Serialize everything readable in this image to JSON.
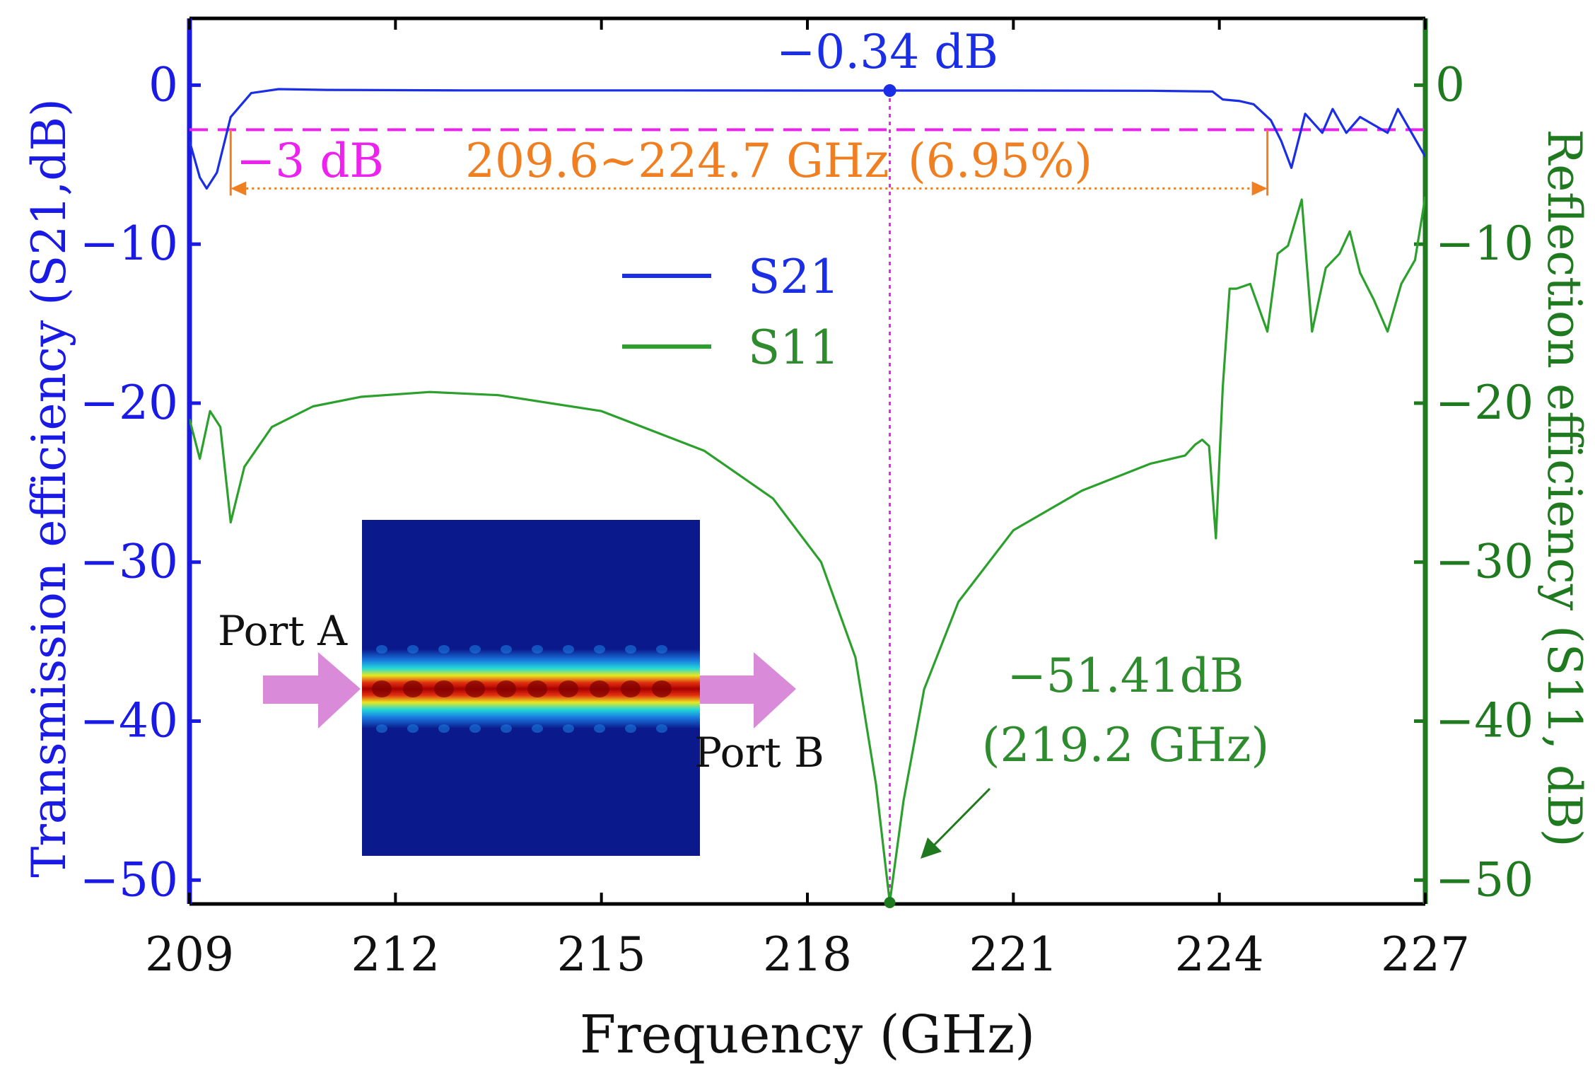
{
  "chart_data": {
    "type": "line",
    "xlabel": "Frequency (GHz)",
    "ylabel_left": "Transmission efficiency (S21,dB)",
    "ylabel_right": "Reflection efficiency  (S11, dB)",
    "xlim": [
      209,
      227
    ],
    "ylim_left": [
      -51.5,
      4.2
    ],
    "ylim_right": [
      -51.5,
      4.2
    ],
    "x_ticks": [
      209,
      212,
      215,
      218,
      221,
      224,
      227
    ],
    "x_tick_labels": [
      "209",
      "212",
      "215",
      "218",
      "221",
      "224",
      "227"
    ],
    "y_left_ticks": [
      0,
      -10,
      -20,
      -30,
      -40,
      -50
    ],
    "y_left_tick_labels": [
      "0",
      "−10",
      "−20",
      "−30",
      "−40",
      "−50"
    ],
    "y_right_ticks": [
      0,
      -10,
      -20,
      -30,
      -40,
      -50
    ],
    "y_right_tick_labels": [
      "0",
      "−10",
      "−20",
      "−30",
      "−40",
      "−50"
    ],
    "colors": {
      "s21": "#1a2ee6",
      "s11": "#2ca02c",
      "marker": "#ee22ee",
      "band": "#f07f22",
      "left_axis": "#1a1ae6",
      "right_axis": "#1f7a1f",
      "port_arrow": "#d98ad9"
    },
    "series": [
      {
        "name": "S21",
        "axis": "left",
        "color": "#1a2ee6",
        "x": [
          209.0,
          209.15,
          209.25,
          209.4,
          209.6,
          209.9,
          210.3,
          211,
          213,
          216,
          218,
          219.2,
          221,
          223,
          223.9,
          224.05,
          224.3,
          224.5,
          224.75,
          224.9,
          225.05,
          225.25,
          225.5,
          225.65,
          225.85,
          226.05,
          226.25,
          226.45,
          226.6,
          226.8,
          227.0
        ],
        "values": [
          -3.5,
          -5.8,
          -6.5,
          -5.5,
          -2.0,
          -0.5,
          -0.25,
          -0.3,
          -0.33,
          -0.33,
          -0.34,
          -0.34,
          -0.34,
          -0.35,
          -0.4,
          -0.9,
          -1.0,
          -1.2,
          -2.2,
          -3.5,
          -5.2,
          -1.8,
          -3.0,
          -1.5,
          -3.0,
          -2.0,
          -2.5,
          -3.0,
          -1.5,
          -3.0,
          -4.5
        ]
      },
      {
        "name": "S11",
        "axis": "right",
        "color": "#2ca02c",
        "x": [
          209.0,
          209.15,
          209.3,
          209.45,
          209.6,
          209.8,
          210.2,
          210.8,
          211.5,
          212.5,
          213.5,
          215,
          216.5,
          217.5,
          218.2,
          218.7,
          219.0,
          219.2,
          219.4,
          219.7,
          220.2,
          221,
          222,
          223,
          223.5,
          223.65,
          223.75,
          223.85,
          223.95,
          224.05,
          224.15,
          224.25,
          224.45,
          224.7,
          224.85,
          225.0,
          225.2,
          225.35,
          225.55,
          225.75,
          225.9,
          226.05,
          226.25,
          226.45,
          226.65,
          226.85,
          227.0
        ],
        "values": [
          -21.0,
          -23.5,
          -20.5,
          -21.5,
          -27.5,
          -24.0,
          -21.5,
          -20.2,
          -19.6,
          -19.3,
          -19.5,
          -20.5,
          -23.0,
          -26.0,
          -30.0,
          -36.0,
          -44.0,
          -51.4,
          -45.0,
          -38.0,
          -32.5,
          -28.0,
          -25.5,
          -23.8,
          -23.3,
          -22.6,
          -22.3,
          -22.7,
          -28.5,
          -19.0,
          -12.8,
          -12.8,
          -12.5,
          -15.5,
          -10.6,
          -10.1,
          -7.2,
          -15.5,
          -11.5,
          -10.6,
          -9.2,
          -11.8,
          -13.5,
          -15.5,
          -12.5,
          -11.0,
          -7.0
        ]
      }
    ],
    "legend": {
      "position": "upper-middle",
      "entries": [
        "S21",
        "S11"
      ]
    },
    "annotations": {
      "s21_peak_label": "−0.34 dB",
      "s21_peak": {
        "x": 219.2,
        "value": -0.34
      },
      "minus3db_label": "−3 dB",
      "minus3db_value": -2.8,
      "band_label": "209.6~224.7 GHz",
      "band_pct_label": "(6.95%)",
      "band_range": [
        209.6,
        224.7
      ],
      "band_arrow_y": -6.5,
      "s11_min_label_line1": "−51.41dB",
      "s11_min_label_line2": "(219.2 GHz)",
      "s11_min": {
        "x": 219.2,
        "value": -51.41
      },
      "marker_x": 219.2
    },
    "inset": {
      "description_type": "field-distribution heatmap",
      "port_a_label": "Port A",
      "port_b_label": "Port B"
    }
  }
}
